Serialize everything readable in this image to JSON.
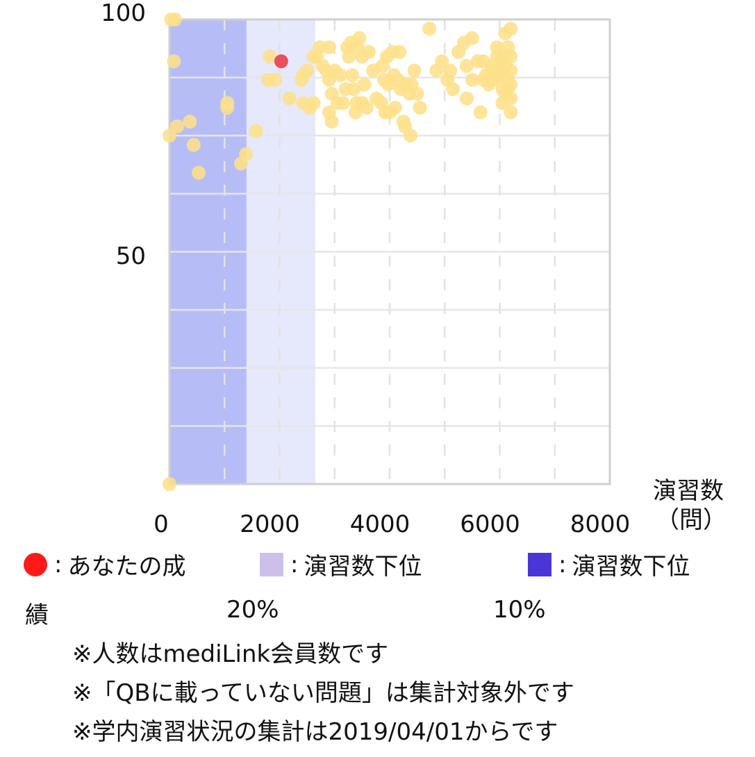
{
  "chart_data": {
    "type": "scatter",
    "xlim": [
      0,
      8000
    ],
    "ylim": [
      0,
      100
    ],
    "x_ticks": [
      "0",
      "2000",
      "4000",
      "6000",
      "8000"
    ],
    "y_ticks": [
      "100",
      "50"
    ],
    "x_unit_line1": "演習数",
    "x_unit_line2": "（問）",
    "grid": true,
    "bands": [
      {
        "from": 0,
        "to": 1400,
        "color": "#b6bdf6",
        "label": "演習数下位10%"
      },
      {
        "from": 1400,
        "to": 2650,
        "color": "#e6e8fb",
        "label": "演習数下位20%"
      }
    ],
    "points_color": "#fde08a",
    "you_color": "#e8505b",
    "you": {
      "x": 2030,
      "y": 91
    },
    "points": [
      [
        30,
        100
      ],
      [
        100,
        100
      ],
      [
        80,
        91
      ],
      [
        0,
        75
      ],
      [
        140,
        77
      ],
      [
        370,
        78
      ],
      [
        440,
        73
      ],
      [
        530,
        67
      ],
      [
        1050,
        82
      ],
      [
        1050,
        81
      ],
      [
        1300,
        69
      ],
      [
        1390,
        71
      ],
      [
        1570,
        76
      ],
      [
        1820,
        92
      ],
      [
        1790,
        87
      ],
      [
        1920,
        87
      ],
      [
        2180,
        83
      ],
      [
        2400,
        87
      ],
      [
        2430,
        88
      ],
      [
        2500,
        89
      ],
      [
        2430,
        82
      ],
      [
        2550,
        81
      ],
      [
        2620,
        82
      ],
      [
        2620,
        92
      ],
      [
        2680,
        92
      ],
      [
        2730,
        94
      ],
      [
        2780,
        90
      ],
      [
        2900,
        94
      ],
      [
        2850,
        89
      ],
      [
        2900,
        87
      ],
      [
        2950,
        84
      ],
      [
        3000,
        89
      ],
      [
        2900,
        80
      ],
      [
        2950,
        78
      ],
      [
        3050,
        82
      ],
      [
        3100,
        88
      ],
      [
        3150,
        82
      ],
      [
        3200,
        85
      ],
      [
        3230,
        94
      ],
      [
        3260,
        92
      ],
      [
        3300,
        95
      ],
      [
        3320,
        88
      ],
      [
        3350,
        85
      ],
      [
        3380,
        80
      ],
      [
        3400,
        82
      ],
      [
        3420,
        94
      ],
      [
        3450,
        96
      ],
      [
        3500,
        92
      ],
      [
        3540,
        86
      ],
      [
        3500,
        82
      ],
      [
        3580,
        81
      ],
      [
        3620,
        93
      ],
      [
        3700,
        89
      ],
      [
        3760,
        83
      ],
      [
        3850,
        82
      ],
      [
        3870,
        90
      ],
      [
        3900,
        87
      ],
      [
        3920,
        80
      ],
      [
        3950,
        92
      ],
      [
        3980,
        86
      ],
      [
        4000,
        80
      ],
      [
        4050,
        93
      ],
      [
        4080,
        88
      ],
      [
        4100,
        81
      ],
      [
        4150,
        87
      ],
      [
        4180,
        93
      ],
      [
        4200,
        85
      ],
      [
        4250,
        78
      ],
      [
        4280,
        77
      ],
      [
        4300,
        86
      ],
      [
        4360,
        84
      ],
      [
        4380,
        75
      ],
      [
        4400,
        86
      ],
      [
        4450,
        89
      ],
      [
        4500,
        84
      ],
      [
        4550,
        81
      ],
      [
        4720,
        98
      ],
      [
        4850,
        89
      ],
      [
        4950,
        91
      ],
      [
        5050,
        87
      ],
      [
        5100,
        89
      ],
      [
        5150,
        85
      ],
      [
        5250,
        93
      ],
      [
        5350,
        95
      ],
      [
        5400,
        83
      ],
      [
        5400,
        90
      ],
      [
        5500,
        87
      ],
      [
        5500,
        96
      ],
      [
        5600,
        91
      ],
      [
        5650,
        80
      ],
      [
        5700,
        87
      ],
      [
        5700,
        91
      ],
      [
        5750,
        88
      ],
      [
        5800,
        86
      ],
      [
        5850,
        89
      ],
      [
        5850,
        90
      ],
      [
        5900,
        87
      ],
      [
        5950,
        92
      ],
      [
        5950,
        94
      ],
      [
        6000,
        88
      ],
      [
        6050,
        85
      ],
      [
        6050,
        82
      ],
      [
        6100,
        90
      ],
      [
        6100,
        97
      ],
      [
        6150,
        94
      ],
      [
        6150,
        85
      ],
      [
        6200,
        92
      ],
      [
        6200,
        89
      ],
      [
        6200,
        86
      ],
      [
        6200,
        83
      ],
      [
        6200,
        80
      ],
      [
        6200,
        98
      ],
      [
        6100,
        92
      ],
      [
        6050,
        89
      ],
      [
        6150,
        87
      ],
      [
        6000,
        91
      ],
      [
        5950,
        88
      ],
      [
        6100,
        84
      ],
      [
        0,
        0
      ]
    ]
  },
  "legend": {
    "sep": ":",
    "you": {
      "color": "#ff1a1a",
      "text": "あなたの成",
      "wrap": "績"
    },
    "low20": {
      "color": "#ccc0ea",
      "text": "演習数下位",
      "wrap": "20%"
    },
    "low10": {
      "color": "#4a35d6",
      "text": "演習数下位",
      "wrap": "10%"
    }
  },
  "notes": {
    "n1": "※人数はmediLink会員数です",
    "n2": "※「QBに載っていない問題」は集計対象外です",
    "n3": "※学内演習状況の集計は2019/04/01からです"
  }
}
